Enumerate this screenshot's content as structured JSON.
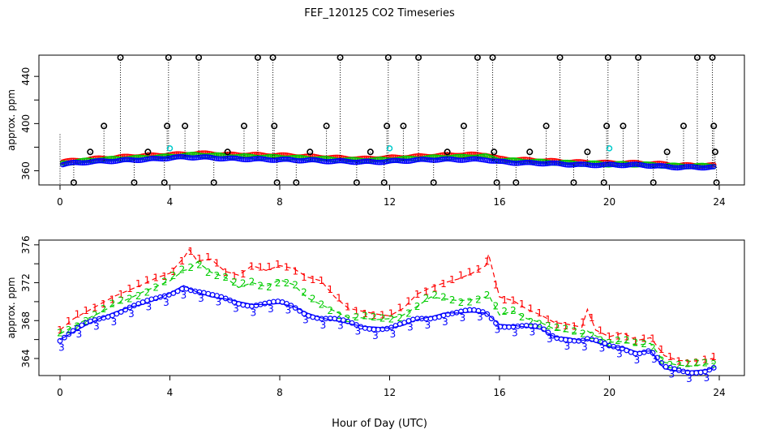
{
  "title": "FEF_120125  CO2 Timeseries",
  "xlabel": "Hour of Day (UTC)",
  "colors": {
    "series1": "#ff0000",
    "series2": "#00cc00",
    "series3": "#0000ff",
    "cyan": "#00cccc",
    "black": "#000000"
  },
  "chart_data": [
    {
      "type": "scatter",
      "ylabel": "approx. ppm",
      "xlim": [
        0,
        24
      ],
      "ylim": [
        348,
        458
      ],
      "xticks": [
        "0",
        "4",
        "8",
        "12",
        "16",
        "20",
        "24"
      ],
      "yticks": [
        "360",
        "400",
        "440"
      ],
      "base": {
        "x": [
          0.1,
          0.5,
          1.0,
          1.5,
          2.0,
          2.5,
          3.0,
          3.5,
          4.0,
          4.5,
          5.0,
          5.5,
          6.0,
          6.5,
          7.0,
          7.5,
          8.0,
          8.5,
          9.0,
          9.5,
          10.0,
          10.5,
          11.0,
          11.5,
          12.0,
          12.5,
          13.0,
          13.5,
          14.0,
          14.5,
          15.0,
          15.5,
          16.0,
          16.5,
          17.0,
          17.5,
          18.0,
          18.5,
          19.0,
          19.5,
          20.0,
          20.5,
          21.0,
          21.5,
          22.0,
          22.5,
          23.0,
          23.5,
          23.8
        ],
        "series1": [
          367.5,
          368.5,
          369.5,
          370.5,
          371,
          372,
          372.5,
          373,
          373.5,
          374,
          374.5,
          374.5,
          373.5,
          373.5,
          373.5,
          373,
          373,
          372.5,
          372,
          371.5,
          371,
          370.5,
          370,
          370.5,
          371,
          371.5,
          372,
          372.5,
          373,
          373.5,
          373.5,
          373.5,
          370,
          369.5,
          369,
          368.5,
          368,
          367.5,
          367,
          367,
          366.5,
          366.5,
          366.5,
          366,
          365.5,
          364.5,
          364.5,
          364.5,
          364.5
        ],
        "series2": [
          366.5,
          367.5,
          368.5,
          369.5,
          370,
          370.5,
          371,
          371.5,
          372,
          373,
          373.5,
          373,
          372.5,
          372,
          372,
          371.5,
          371.5,
          371,
          370.5,
          370,
          369.5,
          369,
          369,
          369,
          369.5,
          370,
          370.5,
          371,
          371.5,
          371.5,
          372,
          372,
          369,
          368.5,
          368,
          367.5,
          367,
          366.5,
          366,
          366,
          365.5,
          365.5,
          365.5,
          365,
          364.5,
          364,
          364,
          364,
          364
        ],
        "series3": [
          365.5,
          366.5,
          367.5,
          368,
          368.5,
          369,
          369.5,
          370,
          371,
          371.5,
          371.5,
          371,
          370.5,
          370,
          370,
          369.5,
          369.5,
          369,
          369,
          368.5,
          368,
          368,
          367.5,
          367.5,
          368,
          368.5,
          369,
          369.5,
          369.5,
          369.5,
          369.5,
          369.5,
          367.5,
          367,
          366.5,
          366.5,
          366,
          365.5,
          365,
          365,
          365,
          365,
          365,
          364.5,
          363.5,
          363,
          363,
          363,
          363
        ]
      },
      "spikes": [
        {
          "x": 0.5,
          "y": 350
        },
        {
          "x": 1.1,
          "y": 376
        },
        {
          "x": 1.6,
          "y": 398
        },
        {
          "x": 2.2,
          "y": 456
        },
        {
          "x": 2.7,
          "y": 350
        },
        {
          "x": 3.2,
          "y": 376
        },
        {
          "x": 3.8,
          "y": 350
        },
        {
          "x": 3.9,
          "y": 398
        },
        {
          "x": 3.95,
          "y": 456
        },
        {
          "x": 4.55,
          "y": 398
        },
        {
          "x": 5.05,
          "y": 456
        },
        {
          "x": 5.6,
          "y": 350
        },
        {
          "x": 6.1,
          "y": 376
        },
        {
          "x": 6.7,
          "y": 398
        },
        {
          "x": 7.2,
          "y": 456
        },
        {
          "x": 7.75,
          "y": 456
        },
        {
          "x": 7.8,
          "y": 398
        },
        {
          "x": 7.9,
          "y": 350
        },
        {
          "x": 8.6,
          "y": 350
        },
        {
          "x": 9.1,
          "y": 376
        },
        {
          "x": 9.7,
          "y": 398
        },
        {
          "x": 10.2,
          "y": 456
        },
        {
          "x": 10.8,
          "y": 350
        },
        {
          "x": 11.3,
          "y": 376
        },
        {
          "x": 11.8,
          "y": 350
        },
        {
          "x": 11.9,
          "y": 398
        },
        {
          "x": 11.95,
          "y": 456
        },
        {
          "x": 12.5,
          "y": 398
        },
        {
          "x": 13.05,
          "y": 456
        },
        {
          "x": 13.6,
          "y": 350
        },
        {
          "x": 14.1,
          "y": 376
        },
        {
          "x": 14.7,
          "y": 398
        },
        {
          "x": 15.2,
          "y": 456
        },
        {
          "x": 15.75,
          "y": 456
        },
        {
          "x": 15.8,
          "y": 376
        },
        {
          "x": 15.9,
          "y": 350
        },
        {
          "x": 16.6,
          "y": 350
        },
        {
          "x": 17.1,
          "y": 376
        },
        {
          "x": 17.7,
          "y": 398
        },
        {
          "x": 18.2,
          "y": 456
        },
        {
          "x": 18.7,
          "y": 350
        },
        {
          "x": 19.2,
          "y": 376
        },
        {
          "x": 19.8,
          "y": 350
        },
        {
          "x": 19.9,
          "y": 398
        },
        {
          "x": 19.95,
          "y": 456
        },
        {
          "x": 20.5,
          "y": 398
        },
        {
          "x": 21.05,
          "y": 456
        },
        {
          "x": 21.6,
          "y": 350
        },
        {
          "x": 22.1,
          "y": 376
        },
        {
          "x": 22.7,
          "y": 398
        },
        {
          "x": 23.2,
          "y": 456
        },
        {
          "x": 23.75,
          "y": 456
        },
        {
          "x": 23.8,
          "y": 398
        },
        {
          "x": 23.85,
          "y": 376
        },
        {
          "x": 23.9,
          "y": 350
        }
      ],
      "cyan": [
        {
          "x": 4.0,
          "y": 379
        },
        {
          "x": 12.0,
          "y": 379
        },
        {
          "x": 20.0,
          "y": 379
        }
      ]
    },
    {
      "type": "line",
      "ylabel": "approx. ppm",
      "xlim": [
        0,
        24
      ],
      "ylim": [
        362.2,
        376.5
      ],
      "xticks": [
        "0",
        "4",
        "8",
        "12",
        "16",
        "20",
        "24"
      ],
      "yticks": [
        "364",
        "368",
        "372",
        "376"
      ],
      "markers": [
        "1",
        "2",
        "3"
      ],
      "x": [
        0.0,
        0.5,
        1.0,
        1.5,
        2.0,
        2.5,
        3.0,
        3.5,
        4.0,
        4.5,
        4.7,
        5.0,
        5.5,
        6.0,
        6.5,
        7.0,
        7.5,
        8.0,
        8.5,
        9.0,
        9.5,
        10.0,
        10.5,
        11.0,
        11.5,
        12.0,
        12.5,
        13.0,
        13.5,
        14.0,
        14.5,
        15.0,
        15.5,
        15.6,
        16.0,
        16.5,
        17.0,
        17.5,
        18.0,
        18.5,
        19.0,
        19.2,
        19.5,
        20.0,
        20.5,
        21.0,
        21.5,
        22.0,
        22.5,
        23.0,
        23.5,
        23.8
      ],
      "series": [
        {
          "values": [
            367.0,
            368.2,
            369.0,
            369.8,
            370.6,
            371.2,
            371.8,
            372.5,
            373.0,
            374.6,
            375.5,
            374.3,
            374.5,
            373.2,
            372.8,
            373.8,
            373.3,
            373.8,
            373.5,
            372.6,
            372.2,
            370.5,
            369.3,
            369.0,
            368.7,
            368.5,
            369.3,
            370.8,
            371.5,
            372.0,
            372.4,
            373.0,
            373.8,
            375.0,
            370.5,
            370.1,
            369.2,
            368.6,
            367.8,
            367.6,
            367.3,
            369.2,
            367.0,
            366.3,
            366.7,
            365.9,
            366.2,
            364.3,
            363.8,
            363.7,
            363.9,
            364.0
          ]
        },
        {
          "values": [
            366.6,
            367.4,
            368.2,
            368.9,
            369.7,
            370.3,
            371.0,
            371.6,
            372.2,
            373.3,
            373.4,
            374.2,
            373.1,
            372.6,
            371.5,
            372.0,
            371.6,
            372.3,
            371.8,
            370.4,
            369.7,
            369.0,
            368.3,
            368.3,
            368.1,
            368.2,
            368.6,
            369.5,
            370.5,
            370.3,
            370.1,
            370.2,
            370.5,
            370.7,
            368.6,
            369.0,
            368.2,
            367.8,
            367.1,
            366.8,
            366.6,
            366.9,
            366.4,
            365.7,
            365.8,
            365.4,
            365.6,
            363.6,
            363.3,
            363.2,
            363.4,
            363.5
          ]
        },
        {
          "values": [
            366.0,
            366.8,
            367.6,
            368.3,
            368.9,
            369.4,
            369.7,
            370.2,
            370.9,
            371.7,
            371.4,
            371.0,
            370.5,
            370.3,
            370.0,
            369.7,
            369.7,
            369.8,
            369.5,
            368.8,
            368.3,
            368.0,
            367.7,
            367.4,
            367.3,
            367.2,
            367.5,
            368.1,
            368.4,
            368.8,
            368.8,
            368.9,
            368.8,
            368.6,
            367.6,
            367.5,
            367.3,
            367.1,
            366.3,
            366.2,
            365.9,
            366.0,
            365.7,
            365.2,
            365.2,
            364.7,
            364.8,
            362.9,
            362.7,
            362.7,
            362.8,
            363.0
          ]
        }
      ]
    }
  ]
}
